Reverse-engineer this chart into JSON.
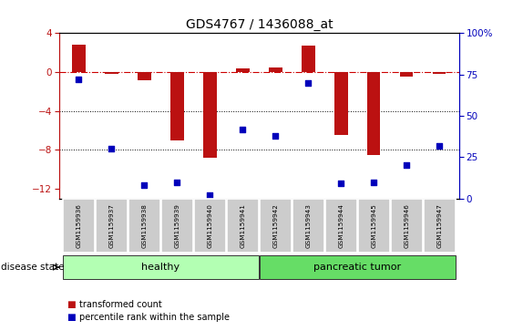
{
  "title": "GDS4767 / 1436088_at",
  "samples": [
    "GSM1159936",
    "GSM1159937",
    "GSM1159938",
    "GSM1159939",
    "GSM1159940",
    "GSM1159941",
    "GSM1159942",
    "GSM1159943",
    "GSM1159944",
    "GSM1159945",
    "GSM1159946",
    "GSM1159947"
  ],
  "transformed_count": [
    2.8,
    -0.2,
    -0.8,
    -7.0,
    -8.8,
    0.4,
    0.5,
    2.7,
    -6.5,
    -8.5,
    -0.5,
    -0.2
  ],
  "percentile_rank": [
    72,
    30,
    8,
    10,
    2,
    42,
    38,
    70,
    9,
    10,
    20,
    32
  ],
  "ylim_left": [
    -13,
    4
  ],
  "ylim_right": [
    0,
    100
  ],
  "yticks_left": [
    4,
    0,
    -4,
    -8,
    -12
  ],
  "yticks_right": [
    100,
    75,
    50,
    25,
    0
  ],
  "bar_color": "#bb1111",
  "dot_color": "#0000bb",
  "hline_color": "#cc0000",
  "dotted_lines": [
    -4,
    -8
  ],
  "bar_width": 0.4,
  "healthy_color": "#b3ffb3",
  "tumor_color": "#66dd66",
  "group_border_color": "#333333",
  "label_box_color": "#cccccc",
  "disease_state_label": "disease state"
}
